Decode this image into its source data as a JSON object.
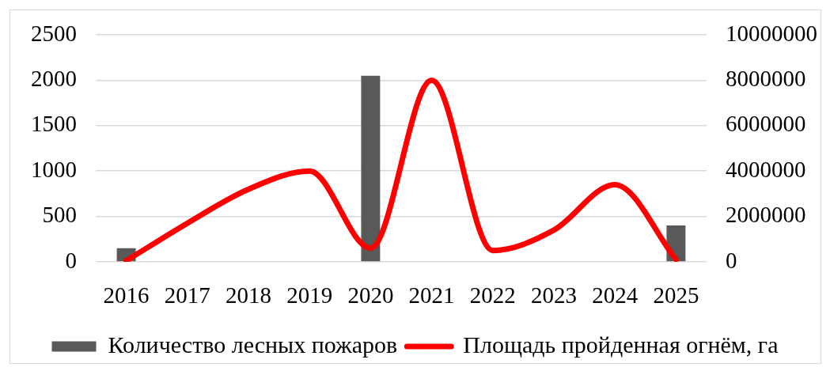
{
  "chart_data": {
    "type": "bar",
    "categories": [
      "2016",
      "2017",
      "2018",
      "2019",
      "2020",
      "2021",
      "2022",
      "2023",
      "2024",
      "2025"
    ],
    "series": [
      {
        "name": "Количество лесных пожаров",
        "color": "#595959",
        "values": [
          150,
          null,
          null,
          null,
          2050,
          null,
          null,
          null,
          null,
          400
        ]
      },
      {
        "name": "Площадь пройденная огнём, га",
        "type": "line",
        "axis": "y2",
        "color": "#ff0000",
        "values": [
          50000,
          1700000,
          3200000,
          4000000,
          600000,
          8000000,
          500000,
          1400000,
          3400000,
          100000
        ]
      }
    ],
    "ylim": [
      0,
      2500
    ],
    "yticks": [
      0,
      500,
      1000,
      1500,
      2000,
      2500
    ],
    "y2lim": [
      0,
      10000000
    ],
    "y2ticks": [
      0,
      2000000,
      4000000,
      6000000,
      8000000,
      10000000
    ],
    "grid": "y",
    "legend": "bottom"
  }
}
